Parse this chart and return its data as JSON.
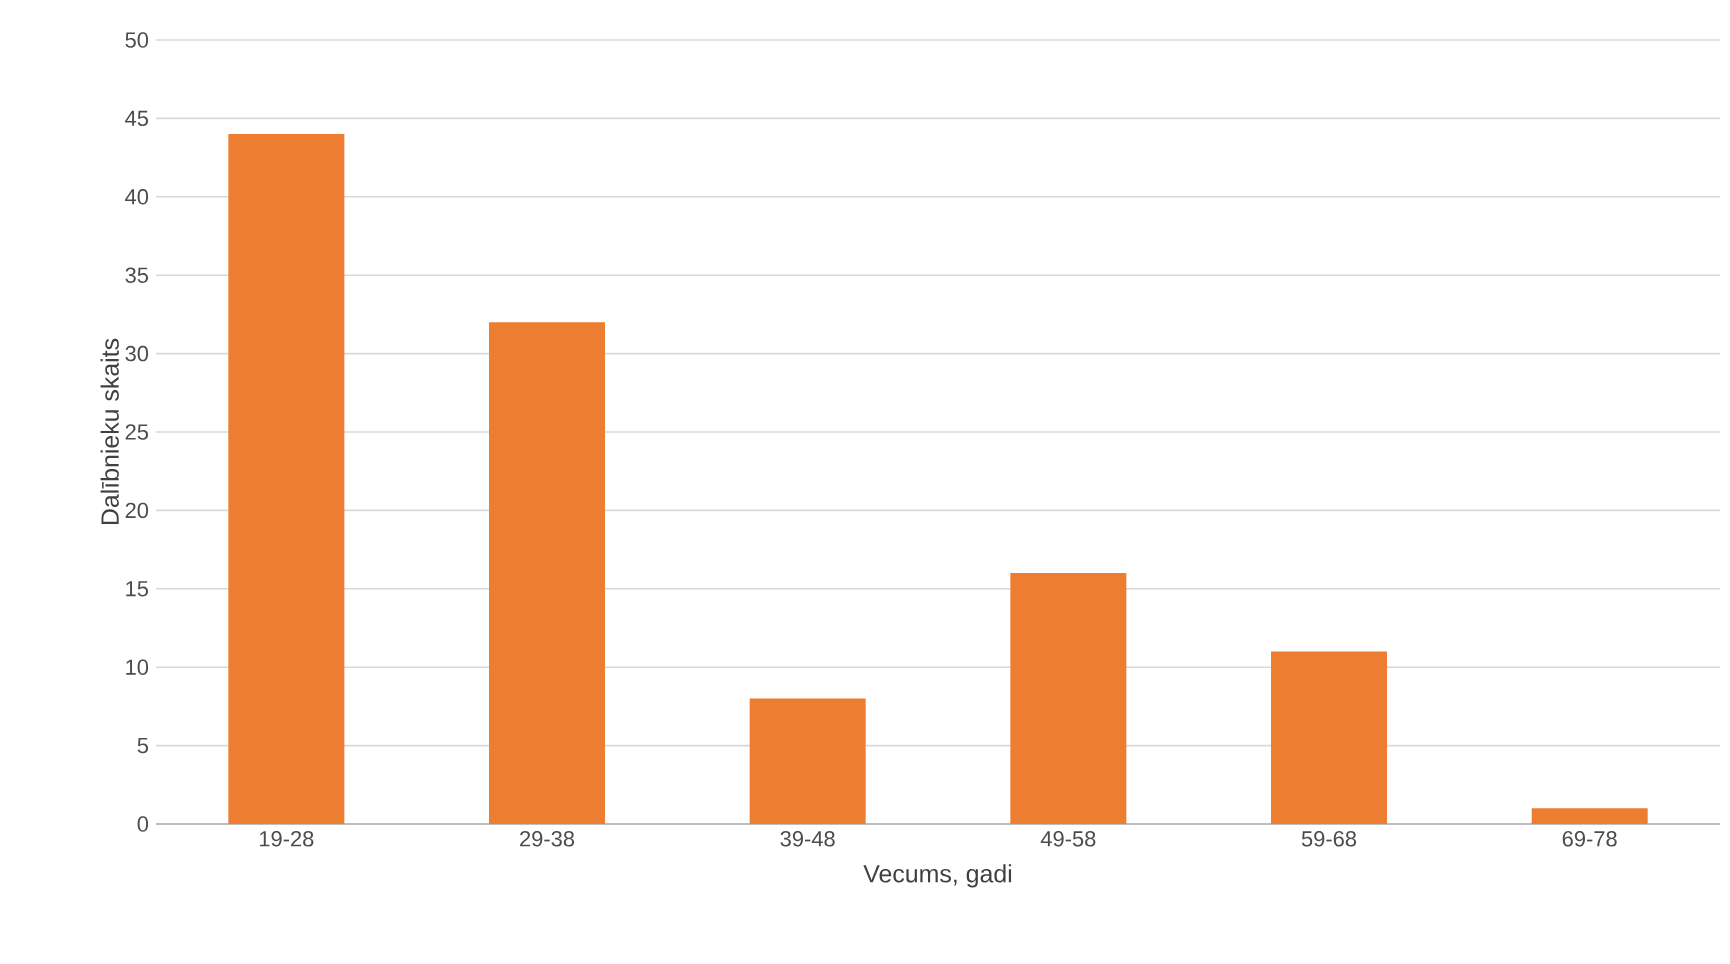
{
  "chart_data": {
    "type": "bar",
    "xlabel": "Vecums, gadi",
    "ylabel": "Dalībnieku skaits",
    "categories": [
      "19-28",
      "29-38",
      "39-48",
      "49-58",
      "59-68",
      "69-78"
    ],
    "values": [
      44,
      32,
      8,
      16,
      11,
      1
    ],
    "color": "#ed7d31",
    "ylim": [
      0,
      50
    ],
    "yticks": [
      0,
      5,
      10,
      15,
      20,
      25,
      30,
      35,
      40,
      45,
      50
    ],
    "grid": "y"
  }
}
